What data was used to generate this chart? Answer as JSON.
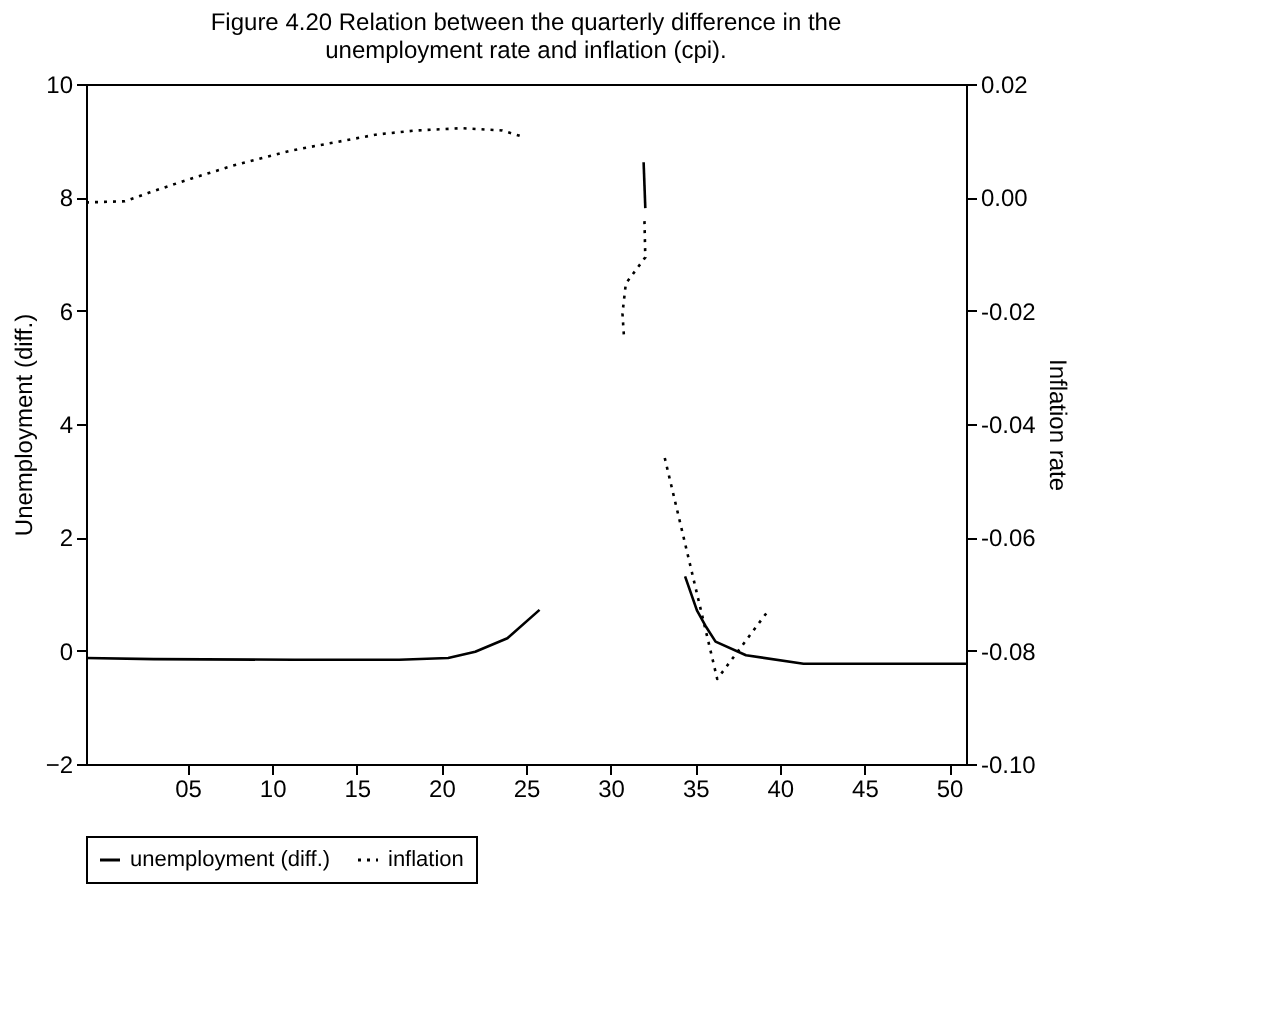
{
  "chart_data": {
    "type": "line",
    "title": "Figure 4.20 Relation between the quarterly difference in the unemployment rate and inflation (cpi).",
    "ylabel": "Unemployment (diff.)",
    "y2label": "Inflation rate",
    "xlim": [
      -1,
      51
    ],
    "xticks": [
      {
        "value": 5,
        "label": "05"
      },
      10,
      15,
      20,
      25,
      30,
      35,
      40,
      45,
      50
    ],
    "ylim": [
      -2,
      10
    ],
    "yticks": [
      -2,
      0,
      2,
      4,
      6,
      8,
      10
    ],
    "y2lim": [
      -0.1,
      0.02
    ],
    "y2ticks": [
      {
        "value": -0.1,
        "label": "-0.10"
      },
      {
        "value": -0.08,
        "label": "-0.08"
      },
      {
        "value": -0.06,
        "label": "-0.06"
      },
      {
        "value": -0.04,
        "label": "-0.04"
      },
      {
        "value": -0.02,
        "label": "-0.02"
      },
      {
        "value": 0,
        "label": "0.00"
      },
      {
        "value": 0.02,
        "label": "0.02"
      }
    ],
    "series": [
      {
        "name": "unemployment (diff.)",
        "color": "#000000",
        "line_style": "solid",
        "x": [
          -1,
          3,
          11.3,
          17.5,
          20.4,
          22,
          23.9,
          25.8,
          28,
          31.95,
          32.05,
          33,
          34.4,
          35.1,
          35.6,
          36.2,
          38,
          41.4,
          46,
          51
        ],
        "values": [
          -0.13,
          -0.15,
          -0.16,
          -0.16,
          -0.13,
          -0.02,
          0.22,
          0.72,
          null,
          8.62,
          7.81,
          null,
          1.31,
          0.71,
          0.44,
          0.16,
          -0.08,
          -0.23,
          -0.23,
          -0.23
        ]
      },
      {
        "name": "inflation",
        "color": "#000000",
        "line_style": "dotted",
        "axis": "y2",
        "x": [
          -1,
          1.3,
          2.7,
          5.2,
          7.7,
          11.2,
          13.7,
          16.2,
          18.5,
          21.2,
          23.6,
          24.9,
          28,
          32.0,
          32.05,
          30.9,
          30.7,
          30.8,
          31.5,
          33.2,
          36.3,
          39.3
        ],
        "values": [
          -0.0009,
          -0.0007,
          0.0008,
          0.0033,
          0.0056,
          0.0083,
          0.0097,
          0.0111,
          0.0118,
          0.0122,
          0.0118,
          0.0106,
          null,
          -0.0042,
          -0.0106,
          -0.0152,
          -0.0205,
          -0.0251,
          null,
          -0.046,
          -0.085,
          -0.073
        ]
      }
    ],
    "legend": "bottom",
    "grid": false
  }
}
